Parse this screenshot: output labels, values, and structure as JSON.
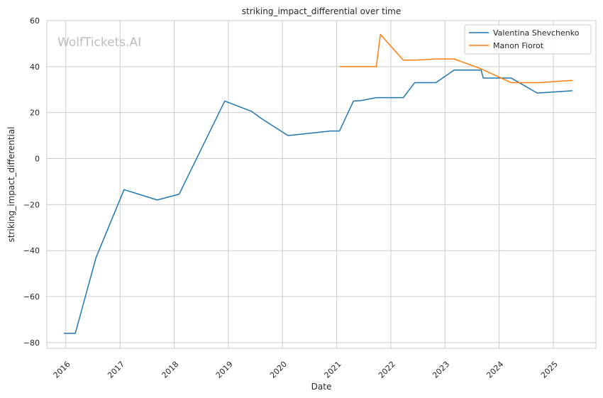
{
  "chart_data": {
    "type": "line",
    "title": "striking_impact_differential over time",
    "xlabel": "Date",
    "ylabel": "striking_impact_differential",
    "watermark": "WolfTickets.AI",
    "x_axis": "date",
    "xlim": [
      "2015-08-26",
      "2025-10-15"
    ],
    "ylim": [
      -82.5,
      60
    ],
    "x_ticks": [
      "2016",
      "2017",
      "2018",
      "2019",
      "2020",
      "2021",
      "2022",
      "2023",
      "2024",
      "2025"
    ],
    "y_ticks": [
      60,
      40,
      20,
      0,
      -20,
      -40,
      -60,
      -80
    ],
    "grid": true,
    "legend_position": "top-right",
    "series": [
      {
        "name": "Valentina Shevchenko",
        "color": "#1f77b4",
        "points": [
          [
            "2015-12-19",
            -76
          ],
          [
            "2016-03-05",
            -76
          ],
          [
            "2016-07-23",
            -43
          ],
          [
            "2017-01-28",
            -13.5
          ],
          [
            "2017-09-09",
            -18
          ],
          [
            "2018-02-03",
            -15.5
          ],
          [
            "2018-12-08",
            25
          ],
          [
            "2019-06-08",
            20.5
          ],
          [
            "2019-08-10",
            17.5
          ],
          [
            "2020-02-08",
            10
          ],
          [
            "2020-11-21",
            12
          ],
          [
            "2021-01-20",
            12
          ],
          [
            "2021-04-24",
            25
          ],
          [
            "2021-06-10",
            25.2
          ],
          [
            "2021-09-25",
            26.5
          ],
          [
            "2022-03-26",
            26.5
          ],
          [
            "2022-06-11",
            33
          ],
          [
            "2022-11-01",
            33
          ],
          [
            "2023-03-04",
            38.5
          ],
          [
            "2023-09-02",
            38.5
          ],
          [
            "2023-09-16",
            35
          ],
          [
            "2024-03-01",
            35
          ],
          [
            "2024-03-23",
            35
          ],
          [
            "2024-09-14",
            28.5
          ],
          [
            "2025-05-10",
            29.5
          ]
        ]
      },
      {
        "name": "Manon Fiorot",
        "color": "#ff7f0e",
        "points": [
          [
            "2021-01-20",
            40
          ],
          [
            "2021-06-05",
            40
          ],
          [
            "2021-09-25",
            40
          ],
          [
            "2021-10-23",
            54
          ],
          [
            "2022-03-26",
            42.8
          ],
          [
            "2022-06-11",
            42.8
          ],
          [
            "2022-11-01",
            43.3
          ],
          [
            "2023-03-04",
            43.3
          ],
          [
            "2023-09-02",
            39
          ],
          [
            "2024-03-23",
            33
          ],
          [
            "2024-09-28",
            33
          ],
          [
            "2025-05-10",
            34
          ]
        ]
      }
    ]
  }
}
